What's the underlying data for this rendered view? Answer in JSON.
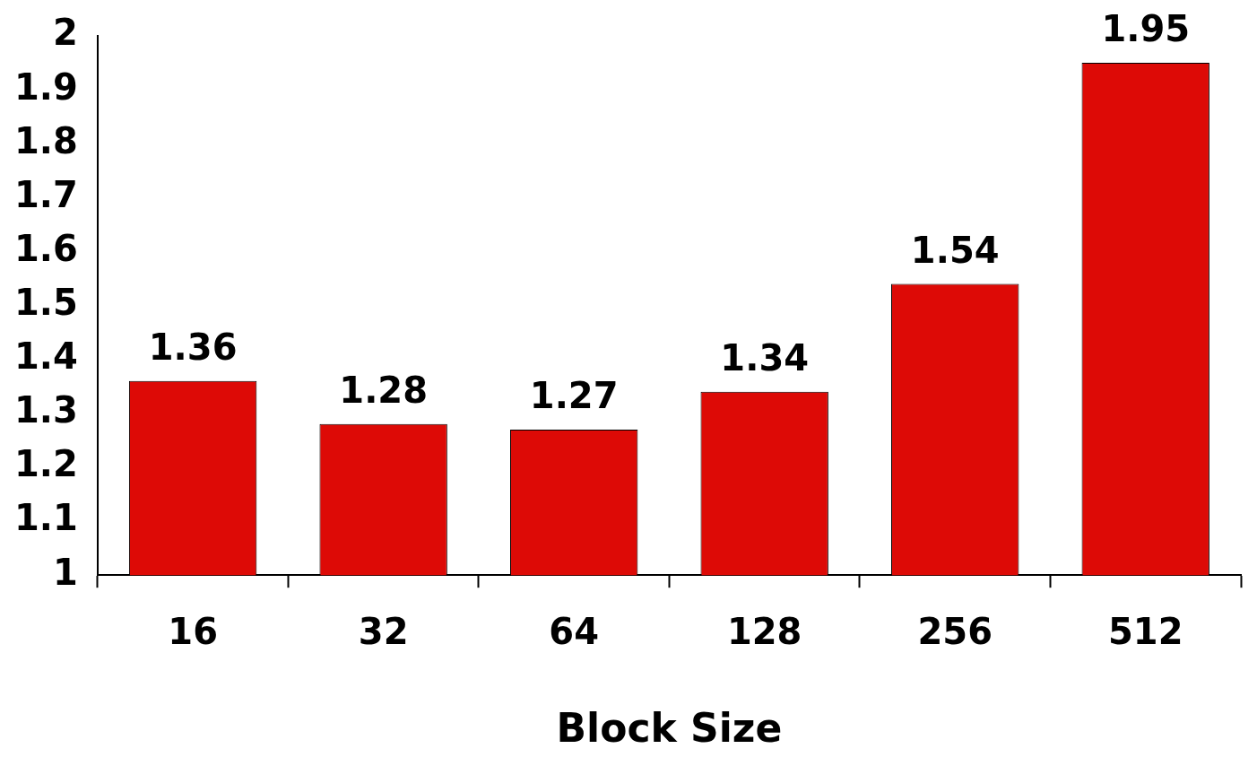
{
  "chart_data": {
    "type": "bar",
    "xlabel": "Block Size",
    "categories": [
      "16",
      "32",
      "64",
      "128",
      "256",
      "512"
    ],
    "values": [
      1.36,
      1.28,
      1.27,
      1.34,
      1.54,
      1.95
    ],
    "color": "#dd0a06",
    "ylim": [
      1,
      2
    ],
    "yticks": [
      1,
      1.1,
      1.2,
      1.3,
      1.4,
      1.5,
      1.6,
      1.7,
      1.8,
      1.9,
      2
    ],
    "data_labels": true,
    "grid": false,
    "legend": false
  }
}
